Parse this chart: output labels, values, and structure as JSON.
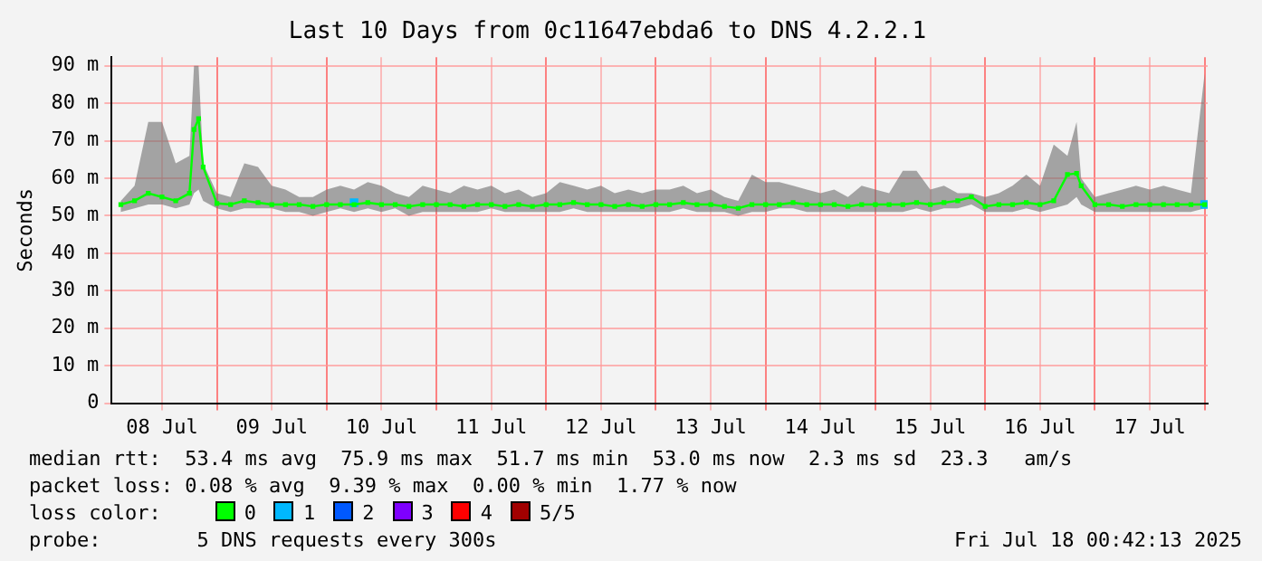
{
  "chart_data": {
    "type": "line",
    "title": "Last 10 Days from 0c11647ebda6 to DNS 4.2.2.1",
    "ylabel": "Seconds",
    "xlim": [
      "2025-07-08T01:00",
      "2025-07-18T00:40"
    ],
    "ylim": [
      0,
      92.3
    ],
    "xticks": [
      {
        "value": "2025-07-08T12:00",
        "label": "08 Jul"
      },
      {
        "value": "2025-07-09T00:00",
        "label": null
      },
      {
        "value": "2025-07-09T12:00",
        "label": "09 Jul"
      },
      {
        "value": "2025-07-10T00:00",
        "label": null
      },
      {
        "value": "2025-07-10T12:00",
        "label": "10 Jul"
      },
      {
        "value": "2025-07-11T00:00",
        "label": null
      },
      {
        "value": "2025-07-11T12:00",
        "label": "11 Jul"
      },
      {
        "value": "2025-07-12T00:00",
        "label": null
      },
      {
        "value": "2025-07-12T12:00",
        "label": "12 Jul"
      },
      {
        "value": "2025-07-13T00:00",
        "label": null
      },
      {
        "value": "2025-07-13T12:00",
        "label": "13 Jul"
      },
      {
        "value": "2025-07-14T00:00",
        "label": null
      },
      {
        "value": "2025-07-14T12:00",
        "label": "14 Jul"
      },
      {
        "value": "2025-07-15T00:00",
        "label": null
      },
      {
        "value": "2025-07-15T12:00",
        "label": "15 Jul"
      },
      {
        "value": "2025-07-16T00:00",
        "label": null
      },
      {
        "value": "2025-07-16T12:00",
        "label": "16 Jul"
      },
      {
        "value": "2025-07-17T00:00",
        "label": null
      },
      {
        "value": "2025-07-17T12:00",
        "label": "17 Jul"
      },
      {
        "value": "2025-07-18T00:00",
        "label": null
      }
    ],
    "yticks": [
      0,
      {
        "value": 10,
        "label": "10 m"
      },
      {
        "value": 20,
        "label": "20 m"
      },
      {
        "value": 30,
        "label": "30 m"
      },
      {
        "value": 40,
        "label": "40 m"
      },
      {
        "value": 50,
        "label": "50 m"
      },
      {
        "value": 60,
        "label": "60 m"
      },
      {
        "value": 70,
        "label": "70 m"
      },
      {
        "value": 80,
        "label": "80 m"
      },
      {
        "value": 90,
        "label": "90 m"
      }
    ],
    "grid": true,
    "legend": "bottom",
    "legend_title": "loss color:",
    "marker": "square",
    "series": [
      {
        "name": "0",
        "color": "#00ff00",
        "x": [
          "2025-07-08T03:00",
          "2025-07-08T06:00",
          "2025-07-08T09:00",
          "2025-07-08T12:00",
          "2025-07-08T15:00",
          "2025-07-08T18:00",
          "2025-07-08T19:00",
          "2025-07-08T20:00",
          "2025-07-08T21:00",
          "2025-07-09T00:00",
          "2025-07-09T03:00",
          "2025-07-09T06:00",
          "2025-07-09T09:00",
          "2025-07-09T12:00",
          "2025-07-09T15:00",
          "2025-07-09T18:00",
          "2025-07-09T21:00",
          "2025-07-10T00:00",
          "2025-07-10T03:00",
          "2025-07-10T06:00",
          "2025-07-10T09:00",
          "2025-07-10T12:00",
          "2025-07-10T15:00",
          "2025-07-10T18:00",
          "2025-07-10T21:00",
          "2025-07-11T00:00",
          "2025-07-11T03:00",
          "2025-07-11T06:00",
          "2025-07-11T09:00",
          "2025-07-11T12:00",
          "2025-07-11T15:00",
          "2025-07-11T18:00",
          "2025-07-11T21:00",
          "2025-07-12T00:00",
          "2025-07-12T03:00",
          "2025-07-12T06:00",
          "2025-07-12T09:00",
          "2025-07-12T12:00",
          "2025-07-12T15:00",
          "2025-07-12T18:00",
          "2025-07-12T21:00",
          "2025-07-13T00:00",
          "2025-07-13T03:00",
          "2025-07-13T06:00",
          "2025-07-13T09:00",
          "2025-07-13T12:00",
          "2025-07-13T15:00",
          "2025-07-13T18:00",
          "2025-07-13T21:00",
          "2025-07-14T00:00",
          "2025-07-14T03:00",
          "2025-07-14T06:00",
          "2025-07-14T09:00",
          "2025-07-14T12:00",
          "2025-07-14T15:00",
          "2025-07-14T18:00",
          "2025-07-14T21:00",
          "2025-07-15T00:00",
          "2025-07-15T03:00",
          "2025-07-15T06:00",
          "2025-07-15T09:00",
          "2025-07-15T12:00",
          "2025-07-15T15:00",
          "2025-07-15T18:00",
          "2025-07-15T21:00",
          "2025-07-16T00:00",
          "2025-07-16T03:00",
          "2025-07-16T06:00",
          "2025-07-16T09:00",
          "2025-07-16T12:00",
          "2025-07-16T15:00",
          "2025-07-16T18:00",
          "2025-07-16T20:00",
          "2025-07-16T21:00",
          "2025-07-17T00:00",
          "2025-07-17T03:00",
          "2025-07-17T06:00",
          "2025-07-17T09:00",
          "2025-07-17T12:00",
          "2025-07-17T15:00",
          "2025-07-17T18:00",
          "2025-07-17T21:00",
          "2025-07-18T00:00"
        ],
        "values": [
          53,
          54,
          56,
          55,
          54,
          56,
          73,
          75.9,
          63,
          53.3,
          53,
          54,
          53.5,
          53,
          53,
          53,
          52.5,
          53,
          53,
          53,
          53.5,
          53,
          53,
          52.5,
          53,
          53,
          53,
          52.5,
          53,
          53,
          52.5,
          53,
          52.5,
          53,
          53,
          53.5,
          53,
          53,
          52.5,
          53,
          52.5,
          53,
          53,
          53.5,
          53,
          53,
          52.5,
          52,
          53,
          53,
          53,
          53.5,
          53,
          53,
          53,
          52.5,
          53,
          53,
          53,
          53,
          53.5,
          53,
          53.5,
          54,
          55,
          52.5,
          53,
          53,
          53.5,
          53,
          54,
          61,
          61.3,
          58,
          53,
          53,
          52.5,
          53,
          53,
          53,
          53,
          53,
          53
        ],
        "lower": [
          51,
          52,
          53,
          53,
          52,
          53,
          56,
          57,
          54,
          52,
          51,
          52,
          52,
          52,
          51,
          51,
          50,
          51,
          52,
          51,
          52,
          51,
          52,
          50,
          51,
          51,
          51,
          51,
          51,
          52,
          51,
          51,
          51,
          51,
          51,
          52,
          51,
          51,
          51,
          51,
          51,
          51,
          51,
          52,
          51,
          51,
          51,
          50,
          51,
          51,
          52,
          52,
          51,
          51,
          51,
          51,
          51,
          51,
          51,
          51,
          52,
          51,
          52,
          52,
          53,
          51,
          51,
          51,
          52,
          51,
          52,
          53,
          55,
          53,
          51,
          51,
          51,
          51,
          51,
          51,
          51,
          51,
          52
        ],
        "upper": [
          54,
          58,
          75,
          75,
          64,
          66,
          90,
          90,
          64,
          56,
          55,
          64,
          63,
          58,
          57,
          55,
          55,
          57,
          58,
          57,
          59,
          58,
          56,
          55,
          58,
          57,
          56,
          58,
          57,
          58,
          56,
          57,
          55,
          56,
          59,
          58,
          57,
          58,
          56,
          57,
          56,
          57,
          57,
          58,
          56,
          57,
          55,
          54,
          61,
          59,
          59,
          58,
          57,
          56,
          57,
          55,
          58,
          57,
          56,
          62,
          62,
          57,
          58,
          56,
          56,
          55,
          56,
          58,
          61,
          58,
          69,
          66,
          75,
          60,
          55,
          56,
          57,
          58,
          57,
          58,
          57,
          56,
          88
        ]
      },
      {
        "name": "1",
        "type": "scatter",
        "color": "#00b8ff",
        "x": [
          "2025-07-10T06:00",
          "2025-07-18T00:00"
        ],
        "values": [
          53.5,
          53
        ]
      },
      {
        "name": "2",
        "color": "#0059ff"
      },
      {
        "name": "3",
        "color": "#7e00ff"
      },
      {
        "name": "4",
        "color": "#ff0000"
      },
      {
        "name": "5/5",
        "color": "#a10000"
      }
    ],
    "annotations": [
      "median rtt:  53.4 ms avg  75.9 ms max  51.7 ms min  53.0 ms now  2.3 ms sd  23.3   am/s",
      "packet loss: 0.08 % avg  9.39 % max  0.00 % min  1.77 % now",
      "probe:        5 DNS requests every 300s",
      "Fri Jul 18 00:42:13 2025"
    ]
  }
}
